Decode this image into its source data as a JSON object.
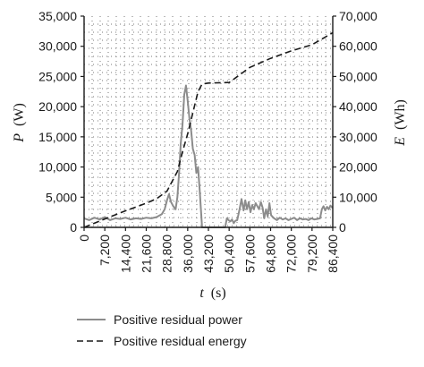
{
  "chart_data": {
    "type": "line",
    "xlabel_symbol": "t",
    "xlabel_unit": "(s)",
    "ylabel_left_symbol": "P",
    "ylabel_left_unit": "(W)",
    "ylabel_right_symbol": "E",
    "ylabel_right_unit": "(Wh)",
    "xlim": [
      0,
      86400
    ],
    "ylim_left": [
      0,
      35000
    ],
    "ylim_right": [
      0,
      70000
    ],
    "x_ticks": [
      0,
      7200,
      14400,
      21600,
      28800,
      36000,
      43200,
      50400,
      57600,
      64800,
      72000,
      79200,
      86400
    ],
    "x_tick_labels": [
      "0",
      "7,200",
      "14,400",
      "21,600",
      "28,800",
      "36,000",
      "43,200",
      "50,400",
      "57,600",
      "64,800",
      "72,000",
      "79,200",
      "86,400"
    ],
    "y_left_ticks": [
      0,
      5000,
      10000,
      15000,
      20000,
      25000,
      30000,
      35000
    ],
    "y_left_tick_labels": [
      "0",
      "5,000",
      "10,000",
      "15,000",
      "20,000",
      "25,000",
      "30,000",
      "35,000"
    ],
    "y_right_ticks": [
      0,
      10000,
      20000,
      30000,
      40000,
      50000,
      60000,
      70000
    ],
    "y_right_tick_labels": [
      "0",
      "10,000",
      "20,000",
      "30,000",
      "40,000",
      "50,000",
      "60,000",
      "70,000"
    ],
    "grid": "dotted",
    "legend_position": "bottom",
    "series": [
      {
        "name": "Positive residual power",
        "axis": "left",
        "style": "solid",
        "color": "#8c8c8c",
        "x": [
          0,
          1800,
          3600,
          5400,
          7200,
          9000,
          10800,
          12600,
          14400,
          16200,
          18000,
          19800,
          21600,
          23400,
          25200,
          27000,
          28000,
          28800,
          29500,
          30200,
          31000,
          31800,
          32400,
          33000,
          33600,
          34200,
          34800,
          35400,
          36000,
          36600,
          37200,
          37800,
          38400,
          39000,
          39600,
          40200,
          40600,
          41000,
          49000,
          49600,
          50200,
          50800,
          51400,
          52000,
          52600,
          53200,
          54000,
          54700,
          55400,
          56000,
          56600,
          57200,
          57800,
          58400,
          59000,
          59600,
          60200,
          60800,
          61400,
          62000,
          62600,
          63200,
          63800,
          64400,
          65000,
          66000,
          67000,
          68000,
          69000,
          70000,
          71000,
          72000,
          73000,
          74000,
          75000,
          76000,
          77000,
          78000,
          79000,
          80000,
          81000,
          82000,
          82600,
          83200,
          83800,
          84400,
          85000,
          85600,
          86400
        ],
        "y": [
          1500,
          1200,
          1600,
          1300,
          1700,
          1200,
          1500,
          1400,
          1600,
          1300,
          1500,
          1400,
          1600,
          1500,
          1700,
          2200,
          3000,
          4500,
          5500,
          4200,
          3500,
          3000,
          5000,
          9000,
          14000,
          17000,
          22000,
          23500,
          21000,
          18000,
          16000,
          13000,
          12000,
          9000,
          10000,
          6000,
          3000,
          0,
          0,
          1500,
          1200,
          1000,
          1300,
          700,
          1100,
          1200,
          3000,
          4700,
          2800,
          4500,
          3000,
          4200,
          2500,
          3700,
          3000,
          4000,
          3500,
          3000,
          4200,
          3300,
          1500,
          3000,
          1800,
          4000,
          2000,
          1500,
          1200,
          1600,
          1300,
          1500,
          1200,
          1400,
          1600,
          1200,
          1500,
          1300,
          1400,
          1200,
          1500,
          1300,
          1400,
          1500,
          3000,
          3500,
          2800,
          3400,
          3000,
          3600,
          3200
        ]
      },
      {
        "name": "Positive residual energy",
        "axis": "right",
        "style": "dashed",
        "color": "#1a1a1a",
        "x": [
          0,
          7200,
          14400,
          21600,
          25200,
          28800,
          32400,
          34200,
          36000,
          37800,
          39600,
          41000,
          43200,
          50400,
          54000,
          57600,
          64800,
          72000,
          79200,
          82800,
          86400
        ],
        "y": [
          0,
          2800,
          5500,
          8000,
          9500,
          12000,
          18500,
          25000,
          31000,
          38000,
          45000,
          47500,
          47800,
          48000,
          50500,
          53000,
          56000,
          58500,
          60500,
          62500,
          64500
        ]
      }
    ]
  }
}
